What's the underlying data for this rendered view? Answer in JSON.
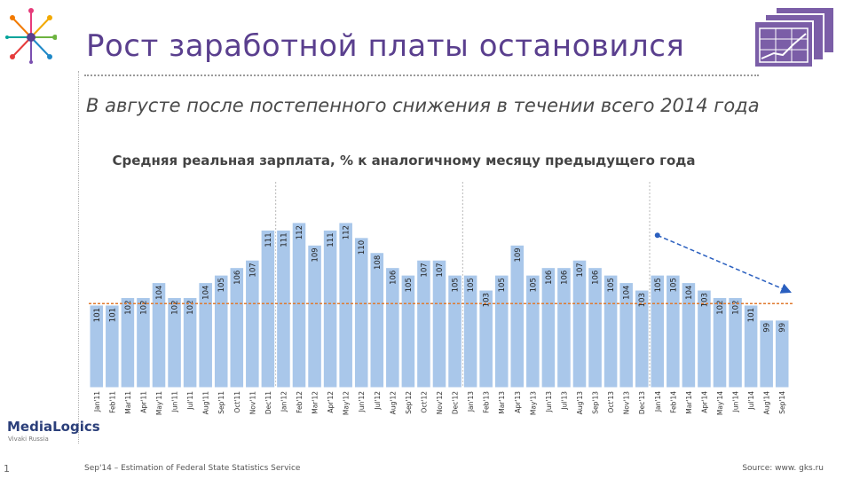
{
  "page": {
    "title": "Рост заработной платы остановился",
    "subtitle": "В августе после постепенного снижения в течении всего 2014 года",
    "footnote": "Sep'14 – Estimation of Federal State Statistics Service",
    "source": "Source: www. gks.ru",
    "page_number": "1",
    "logo_text": "MediaLogics",
    "logo_subtext": "Vivaki Russia"
  },
  "colors": {
    "bar": "#a9c7ea",
    "title": "#5a3f8e",
    "reference_line": "#e07a2f",
    "trend_arrow": "#2a5fbf"
  },
  "chart_data": {
    "type": "bar",
    "title": "Средняя реальная зарплата, % к аналогичному месяцу предыдущего года",
    "categories": [
      "Jan'11",
      "Feb'11",
      "Mar'11",
      "Apr'11",
      "May'11",
      "Jun'11",
      "Jul'11",
      "Aug'11",
      "Sep'11",
      "Oct'11",
      "Nov'11",
      "Dec'11",
      "Jan'12",
      "Feb'12",
      "Mar'12",
      "Apr'12",
      "May'12",
      "Jun'12",
      "Jul'12",
      "Aug'12",
      "Sep'12",
      "Oct'12",
      "Nov'12",
      "Dec'12",
      "Jan'13",
      "Feb'13",
      "Mar'13",
      "Apr'13",
      "May'13",
      "Jun'13",
      "Jul'13",
      "Aug'13",
      "Sep'13",
      "Oct'13",
      "Nov'13",
      "Dec'13",
      "Jan'14",
      "Feb'14",
      "Mar'14",
      "Apr'14",
      "May'14",
      "Jun'14",
      "Jul'14",
      "Aug'14",
      "Sep'14"
    ],
    "values": [
      101,
      101,
      102,
      102,
      104,
      102,
      102,
      104,
      105,
      106,
      107,
      111,
      111,
      112,
      109,
      111,
      112,
      110,
      108,
      106,
      105,
      107,
      107,
      105,
      105,
      103,
      105,
      109,
      105,
      106,
      106,
      107,
      106,
      105,
      104,
      103,
      105,
      105,
      104,
      103,
      102,
      102,
      101,
      99,
      99
    ],
    "ylim": [
      90,
      114
    ],
    "reference_value": 101.2,
    "trend_arrow": {
      "from_category": "Jan'14",
      "from_value": 110.3,
      "to_category": "Sep'14",
      "to_value": 102.8
    },
    "year_separators": [
      "Jan'12",
      "Jan'13",
      "Jan'14"
    ]
  }
}
